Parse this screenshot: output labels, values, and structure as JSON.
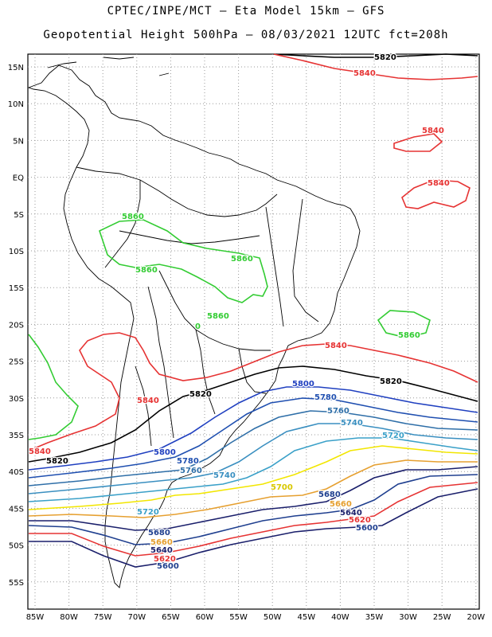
{
  "title_line1": "CPTEC/INPE/MCT –  Eta Model 15km – GFS",
  "title_line2": "Geopotential Height 500hPa – 08/03/2021 12UTC fct=208h",
  "lat_labels": [
    "15N",
    "10N",
    "5N",
    "EQ",
    "5S",
    "10S",
    "15S",
    "20S",
    "25S",
    "30S",
    "35S",
    "40S",
    "45S",
    "50S",
    "55S"
  ],
  "lon_labels": [
    "85W",
    "80W",
    "75W",
    "70W",
    "65W",
    "60W",
    "55W",
    "50W",
    "45W",
    "40W",
    "35W",
    "30W",
    "25W",
    "20W"
  ],
  "contour_colors": {
    "5560": "#1a1f6b",
    "5600": "#1f3f8f",
    "5620": "#e63333",
    "5640": "#1a1f6b",
    "5660": "#e6a030",
    "5680": "#1f3f8f",
    "5700": "#f2e600",
    "5720": "#3aa0c8",
    "5740": "#3a8fc0",
    "5760": "#2f6fa8",
    "5780": "#1f4fb0",
    "5800": "#2040c0",
    "5820": "#000000",
    "5840": "#e63333",
    "5860": "#33cc33"
  },
  "contour_labels": [
    {
      "text": "5820",
      "color": "#000000"
    },
    {
      "text": "5840",
      "color": "#e63333"
    },
    {
      "text": "5840",
      "color": "#e63333"
    },
    {
      "text": "5840",
      "color": "#e63333"
    },
    {
      "text": "5860",
      "color": "#33cc33"
    },
    {
      "text": "5860",
      "color": "#33cc33"
    },
    {
      "text": "5860",
      "color": "#33cc33"
    },
    {
      "text": "5860",
      "color": "#33cc33"
    },
    {
      "text": "5860",
      "color": "#33cc33"
    },
    {
      "text": "0",
      "color": "#33cc33"
    },
    {
      "text": "5840",
      "color": "#e63333"
    },
    {
      "text": "5820",
      "color": "#000000"
    },
    {
      "text": "5840",
      "color": "#e63333"
    },
    {
      "text": "5820",
      "color": "#000000"
    },
    {
      "text": "5840",
      "color": "#e63333"
    },
    {
      "text": "5820",
      "color": "#000000"
    },
    {
      "text": "5800",
      "color": "#2040c0"
    },
    {
      "text": "5780",
      "color": "#1f4fb0"
    },
    {
      "text": "5760",
      "color": "#2f6fa8"
    },
    {
      "text": "5740",
      "color": "#3a8fc0"
    },
    {
      "text": "5720",
      "color": "#3aa0c8"
    },
    {
      "text": "5800",
      "color": "#2040c0"
    },
    {
      "text": "5780",
      "color": "#1f4fb0"
    },
    {
      "text": "5760",
      "color": "#2f6fa8"
    },
    {
      "text": "5740",
      "color": "#3a8fc0"
    },
    {
      "text": "5700",
      "color": "#d8c800"
    },
    {
      "text": "5680",
      "color": "#1f3f8f"
    },
    {
      "text": "5660",
      "color": "#e6a030"
    },
    {
      "text": "5640",
      "color": "#1a1f6b"
    },
    {
      "text": "5620",
      "color": "#e63333"
    },
    {
      "text": "5600",
      "color": "#1f3f8f"
    },
    {
      "text": "5720",
      "color": "#3aa0c8"
    },
    {
      "text": "5680",
      "color": "#1f3f8f"
    },
    {
      "text": "5660",
      "color": "#e6a030"
    },
    {
      "text": "5640",
      "color": "#1a1f6b"
    },
    {
      "text": "5620",
      "color": "#e63333"
    },
    {
      "text": "5600",
      "color": "#1f3f8f"
    }
  ]
}
